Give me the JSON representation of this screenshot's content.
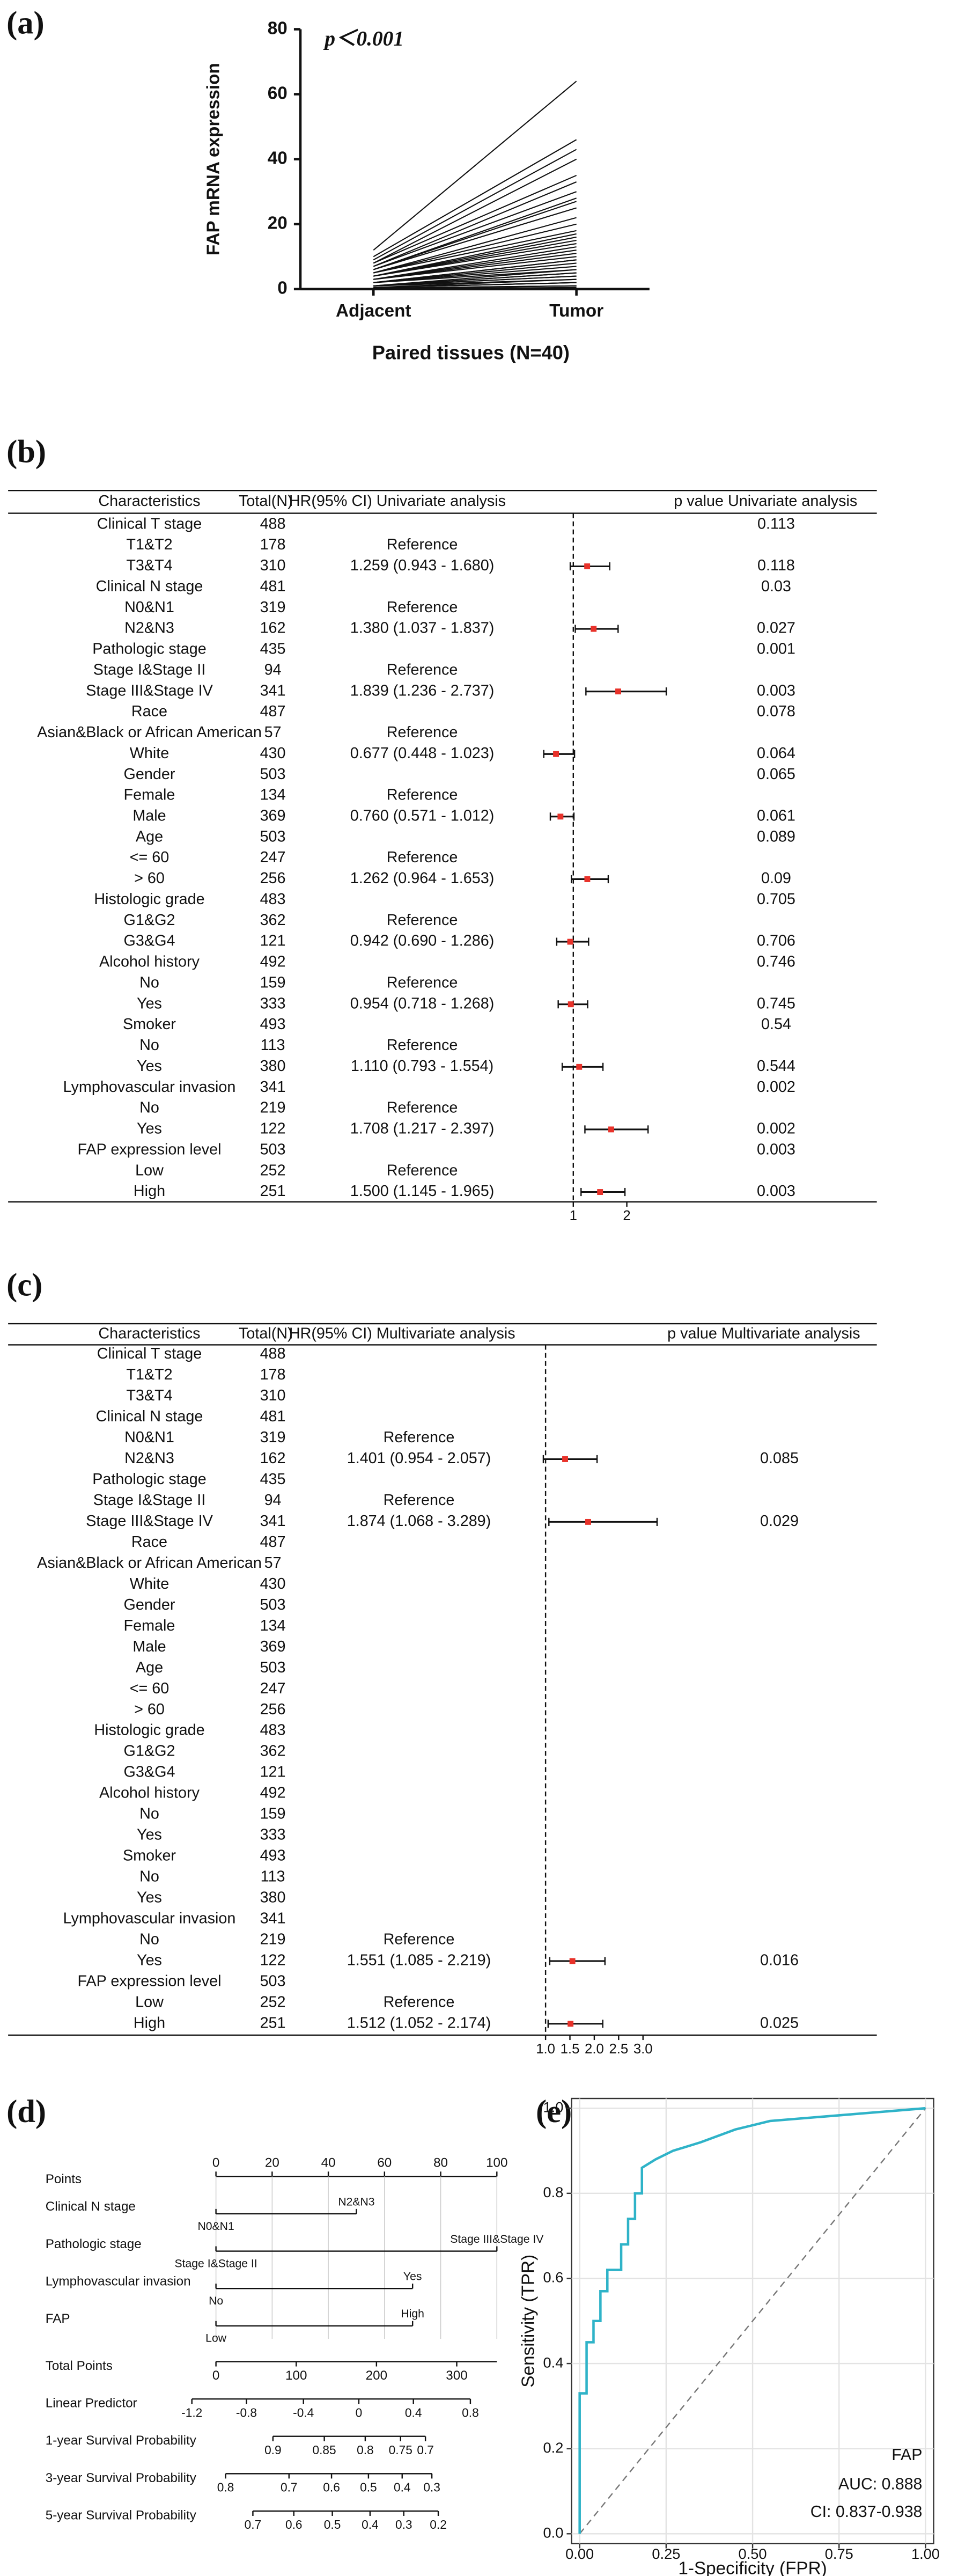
{
  "chart_data": [
    {
      "type": "paired",
      "panel_label": "(a)",
      "annotation": "p＜0.001",
      "ylabel": "FAP mRNA expression",
      "xlabel": "Paired tissues (N=40)",
      "categories": [
        "Adjacent",
        "Tumor"
      ],
      "color": "#111111",
      "ylim": [
        0,
        80
      ],
      "yticks": [
        0,
        20,
        40,
        60,
        80
      ],
      "pairs": [
        [
          12,
          64
        ],
        [
          10,
          46
        ],
        [
          9,
          43
        ],
        [
          8,
          40
        ],
        [
          8,
          35
        ],
        [
          7,
          33
        ],
        [
          7,
          30
        ],
        [
          6,
          28
        ],
        [
          6,
          27
        ],
        [
          6,
          25
        ],
        [
          5,
          22
        ],
        [
          5,
          20
        ],
        [
          5,
          18
        ],
        [
          4,
          17
        ],
        [
          4,
          16
        ],
        [
          4,
          15
        ],
        [
          4,
          14
        ],
        [
          3,
          13
        ],
        [
          3,
          12
        ],
        [
          3,
          11
        ],
        [
          3,
          10
        ],
        [
          2,
          9
        ],
        [
          2,
          9
        ],
        [
          2,
          8
        ],
        [
          2,
          7
        ],
        [
          2,
          6
        ],
        [
          1,
          6
        ],
        [
          1,
          5
        ],
        [
          1,
          5
        ],
        [
          1,
          4
        ],
        [
          1,
          4
        ],
        [
          1,
          3
        ],
        [
          0.5,
          3
        ],
        [
          0.5,
          2
        ],
        [
          0.5,
          2
        ],
        [
          0.5,
          2
        ],
        [
          0.3,
          1
        ],
        [
          0.3,
          1
        ],
        [
          0.2,
          1
        ],
        [
          0.1,
          0.5
        ]
      ]
    },
    {
      "type": "forest",
      "panel_label": "(b)",
      "columns": [
        "Characteristics",
        "Total(N)",
        "HR(95% CI) Univariate analysis",
        "p value Univariate analysis"
      ],
      "characteristics": [
        "Clinical T stage",
        "T1&T2",
        "T3&T4",
        "Clinical N stage",
        "N0&N1",
        "N2&N3",
        "Pathologic stage",
        "Stage I&Stage II",
        "Stage III&Stage IV",
        "Race",
        "Asian&Black or African American",
        "White",
        "Gender",
        "Female",
        "Male",
        "Age",
        "<= 60",
        "> 60",
        "Histologic grade",
        "G1&G2",
        "G3&G4",
        "Alcohol history",
        "No",
        "Yes",
        "Smoker",
        "No",
        "Yes",
        "Lymphovascular invasion",
        "No",
        "Yes",
        "FAP expression level",
        "Low",
        "High"
      ],
      "totals": [
        488,
        178,
        310,
        481,
        319,
        162,
        435,
        94,
        341,
        487,
        57,
        430,
        503,
        134,
        369,
        503,
        247,
        256,
        483,
        362,
        121,
        492,
        159,
        333,
        493,
        113,
        380,
        341,
        219,
        122,
        503,
        252,
        251
      ],
      "hr_labels": [
        null,
        "Reference",
        "1.259 (0.943 - 1.680)",
        null,
        "Reference",
        "1.380 (1.037 - 1.837)",
        null,
        "Reference",
        "1.839 (1.236 - 2.737)",
        null,
        "Reference",
        "0.677 (0.448 - 1.023)",
        null,
        "Reference",
        "0.760 (0.571 - 1.012)",
        null,
        "Reference",
        "1.262 (0.964 - 1.653)",
        null,
        "Reference",
        "0.942 (0.690 - 1.286)",
        null,
        "Reference",
        "0.954 (0.718 - 1.268)",
        null,
        "Reference",
        "1.110 (0.793 - 1.554)",
        null,
        "Reference",
        "1.708 (1.217 - 2.397)",
        null,
        "Reference",
        "1.500 (1.145 - 1.965)"
      ],
      "hr": [
        null,
        null,
        1.259,
        null,
        null,
        1.38,
        null,
        null,
        1.839,
        null,
        null,
        0.677,
        null,
        null,
        0.76,
        null,
        null,
        1.262,
        null,
        null,
        0.942,
        null,
        null,
        0.954,
        null,
        null,
        1.11,
        null,
        null,
        1.708,
        null,
        null,
        1.5
      ],
      "lower": [
        null,
        null,
        0.943,
        null,
        null,
        1.037,
        null,
        null,
        1.236,
        null,
        null,
        0.448,
        null,
        null,
        0.571,
        null,
        null,
        0.964,
        null,
        null,
        0.69,
        null,
        null,
        0.718,
        null,
        null,
        0.793,
        null,
        null,
        1.217,
        null,
        null,
        1.145
      ],
      "upper": [
        null,
        null,
        1.68,
        null,
        null,
        1.837,
        null,
        null,
        2.737,
        null,
        null,
        1.023,
        null,
        null,
        1.012,
        null,
        null,
        1.653,
        null,
        null,
        1.286,
        null,
        null,
        1.268,
        null,
        null,
        1.554,
        null,
        null,
        2.397,
        null,
        null,
        1.965
      ],
      "p": [
        0.113,
        null,
        0.118,
        0.03,
        null,
        0.027,
        0.001,
        null,
        0.003,
        0.078,
        null,
        0.064,
        0.065,
        null,
        0.061,
        0.089,
        null,
        0.09,
        0.705,
        null,
        0.706,
        0.746,
        null,
        0.745,
        0.54,
        null,
        0.544,
        0.002,
        null,
        0.002,
        0.003,
        null,
        0.003
      ],
      "xlim": [
        0.3,
        3.0
      ],
      "xticks": [
        1,
        2
      ],
      "reference_line": 1,
      "color": "#e8322a"
    },
    {
      "type": "forest",
      "panel_label": "(c)",
      "columns": [
        "Characteristics",
        "Total(N)",
        "HR(95% CI) Multivariate analysis",
        "p value Multivariate analysis"
      ],
      "characteristics": [
        "Clinical T stage",
        "T1&T2",
        "T3&T4",
        "Clinical N stage",
        "N0&N1",
        "N2&N3",
        "Pathologic stage",
        "Stage I&Stage II",
        "Stage III&Stage IV",
        "Race",
        "Asian&Black or African American",
        "White",
        "Gender",
        "Female",
        "Male",
        "Age",
        "<= 60",
        "> 60",
        "Histologic grade",
        "G1&G2",
        "G3&G4",
        "Alcohol history",
        "No",
        "Yes",
        "Smoker",
        "No",
        "Yes",
        "Lymphovascular invasion",
        "No",
        "Yes",
        "FAP expression level",
        "Low",
        "High"
      ],
      "totals": [
        488,
        178,
        310,
        481,
        319,
        162,
        435,
        94,
        341,
        487,
        57,
        430,
        503,
        134,
        369,
        503,
        247,
        256,
        483,
        362,
        121,
        492,
        159,
        333,
        493,
        113,
        380,
        341,
        219,
        122,
        503,
        252,
        251
      ],
      "hr_labels": [
        null,
        null,
        null,
        null,
        "Reference",
        "1.401 (0.954 - 2.057)",
        null,
        "Reference",
        "1.874 (1.068 - 3.289)",
        null,
        null,
        null,
        null,
        null,
        null,
        null,
        null,
        null,
        null,
        null,
        null,
        null,
        null,
        null,
        null,
        null,
        null,
        null,
        "Reference",
        "1.551 (1.085 - 2.219)",
        null,
        "Reference",
        "1.512 (1.052 - 2.174)"
      ],
      "hr": [
        null,
        null,
        null,
        null,
        null,
        1.401,
        null,
        null,
        1.874,
        null,
        null,
        null,
        null,
        null,
        null,
        null,
        null,
        null,
        null,
        null,
        null,
        null,
        null,
        null,
        null,
        null,
        null,
        null,
        null,
        1.551,
        null,
        null,
        1.512
      ],
      "lower": [
        null,
        null,
        null,
        null,
        null,
        0.954,
        null,
        null,
        1.068,
        null,
        null,
        null,
        null,
        null,
        null,
        null,
        null,
        null,
        null,
        null,
        null,
        null,
        null,
        null,
        null,
        null,
        null,
        null,
        null,
        1.085,
        null,
        null,
        1.052
      ],
      "upper": [
        null,
        null,
        null,
        null,
        null,
        2.057,
        null,
        null,
        3.289,
        null,
        null,
        null,
        null,
        null,
        null,
        null,
        null,
        null,
        null,
        null,
        null,
        null,
        null,
        null,
        null,
        null,
        null,
        null,
        null,
        2.219,
        null,
        null,
        2.174
      ],
      "p": [
        null,
        null,
        null,
        null,
        null,
        0.085,
        null,
        null,
        0.029,
        null,
        null,
        null,
        null,
        null,
        null,
        null,
        null,
        null,
        null,
        null,
        null,
        null,
        null,
        null,
        null,
        null,
        null,
        null,
        null,
        0.016,
        null,
        null,
        0.025
      ],
      "xlim": [
        0.9,
        3.3
      ],
      "xticks": [
        {
          "value": 1,
          "label": "1.0"
        },
        1.5,
        {
          "value": 2,
          "label": "2.0"
        },
        2.5,
        {
          "value": 3,
          "label": "3.0"
        }
      ],
      "reference_line": 1,
      "color": "#e8322a"
    },
    {
      "type": "nomogram",
      "panel_label": "(d)",
      "points": {
        "label": "Points",
        "xlim": [
          0,
          100
        ],
        "ticks": [
          0,
          20,
          40,
          60,
          80,
          100
        ]
      },
      "variables": [
        {
          "label": "Clinical N stage",
          "levels": [
            "N0&N1",
            "N2&N3"
          ],
          "points": [
            0,
            50
          ]
        },
        {
          "label": "Pathologic stage",
          "levels": [
            "Stage I&Stage II",
            "Stage III&Stage IV"
          ],
          "points": [
            0,
            100
          ]
        },
        {
          "label": "Lymphovascular invasion",
          "levels": [
            "No",
            "Yes"
          ],
          "points": [
            0,
            70
          ]
        },
        {
          "label": "FAP",
          "levels": [
            "Low",
            "High"
          ],
          "points": [
            0,
            70
          ]
        }
      ],
      "total_points": {
        "label": "Total Points",
        "xlim": [
          0,
          350
        ],
        "ticks": [
          0,
          100,
          200,
          300
        ]
      },
      "scales": [
        {
          "label": "Linear Predictor",
          "ticks": [
            -1.2,
            -0.8,
            -0.4,
            0,
            0.4,
            0.8
          ],
          "total_points": [
            -30,
            38,
            109,
            178,
            246,
            317
          ]
        },
        {
          "label": "1-year Survival Probability",
          "ticks": [
            0.9,
            0.85,
            0.8,
            0.75,
            0.7
          ],
          "total_points": [
            71,
            135,
            186,
            230,
            261
          ]
        },
        {
          "label": "3-year Survival Probability",
          "ticks": [
            0.8,
            0.7,
            0.6,
            0.5,
            0.4,
            0.3
          ],
          "total_points": [
            12,
            91,
            144,
            190,
            232,
            269
          ]
        },
        {
          "label": "5-year Survival Probability",
          "ticks": [
            0.7,
            0.6,
            0.5,
            0.4,
            0.3,
            0.2
          ],
          "total_points": [
            46,
            97,
            145,
            192,
            234,
            277
          ]
        }
      ]
    },
    {
      "type": "roc",
      "panel_label": "(e)",
      "xlabel": "1-Specificity (FPR)",
      "ylabel": "Sensitivity (TPR)",
      "xlim": [
        0,
        1
      ],
      "ylim": [
        0,
        1
      ],
      "xticks": [
        {
          "value": 0,
          "label": "0.00"
        },
        0.25,
        {
          "value": 0.5,
          "label": "0.50"
        },
        0.75,
        {
          "value": 1,
          "label": "1.00"
        }
      ],
      "yticks": [
        {
          "value": 0,
          "label": "0.0"
        },
        0.2,
        0.4,
        0.6,
        0.8,
        {
          "value": 1,
          "label": "1.0"
        }
      ],
      "grid": true,
      "diagonal": true,
      "series": [
        {
          "name": "FAP",
          "color": "#2fb3c8",
          "x": [
            0,
            0,
            0.02,
            0.02,
            0.04,
            0.04,
            0.06,
            0.06,
            0.08,
            0.08,
            0.12,
            0.12,
            0.14,
            0.14,
            0.16,
            0.16,
            0.18,
            0.18,
            0.22,
            0.27,
            0.35,
            0.45,
            0.55,
            0.7,
            0.85,
            1
          ],
          "y": [
            0,
            0.33,
            0.33,
            0.45,
            0.45,
            0.5,
            0.5,
            0.57,
            0.57,
            0.62,
            0.62,
            0.68,
            0.68,
            0.74,
            0.74,
            0.8,
            0.8,
            0.86,
            0.88,
            0.9,
            0.92,
            0.95,
            0.97,
            0.98,
            0.99,
            1
          ]
        }
      ],
      "annotations": [
        "AUC: 0.888",
        "CI: 0.837-0.938"
      ]
    }
  ]
}
